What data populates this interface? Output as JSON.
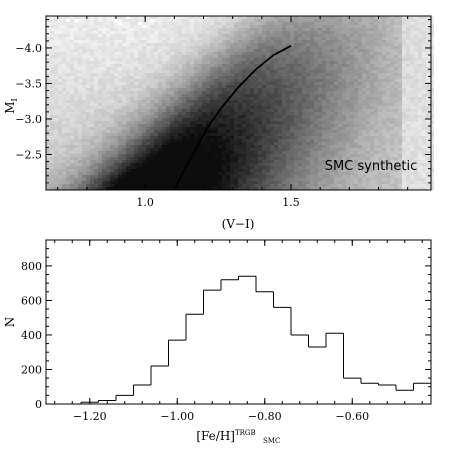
{
  "chart_data": [
    {
      "type": "scatter",
      "title": "",
      "xlabel": "(V−I)",
      "ylabel": "M",
      "ylabel_sub": "I",
      "xlim": [
        0.66,
        1.98
      ],
      "ylim": [
        -2.0,
        -4.45
      ],
      "y_inverted": true,
      "x_ticks": [
        1.0,
        1.5
      ],
      "x_tick_labels": [
        "1.0",
        "1.5"
      ],
      "y_ticks": [
        -2.5,
        -3.0,
        -3.5,
        -4.0
      ],
      "y_tick_labels": [
        "−2.5",
        "−3.0",
        "−3.5",
        "−4.0"
      ],
      "annotation": "SMC synthetic",
      "point_color": "#000000",
      "series": [
        {
          "kind": "curve",
          "x": [
            1.1,
            1.13,
            1.17,
            1.21,
            1.26,
            1.32,
            1.38,
            1.44,
            1.5
          ],
          "y": [
            -2.0,
            -2.25,
            -2.55,
            -2.85,
            -3.15,
            -3.45,
            -3.7,
            -3.9,
            -4.03
          ]
        }
      ]
    },
    {
      "type": "histogram",
      "title": "",
      "xlabel": "[Fe/H]",
      "xlabel_sub": "SMC",
      "xlabel_sup": "TRGB",
      "ylabel": "N",
      "xlim": [
        -1.3,
        -0.42
      ],
      "ylim": [
        0,
        950
      ],
      "x_ticks": [
        -1.2,
        -1.0,
        -0.8,
        -0.6
      ],
      "x_tick_labels": [
        "−1.20",
        "−1.00",
        "−0.80",
        "−0.60"
      ],
      "y_ticks": [
        0,
        200,
        400,
        600,
        800
      ],
      "y_tick_labels": [
        "0",
        "200",
        "400",
        "600",
        "800"
      ],
      "bin_edges": [
        -1.3,
        -1.26,
        -1.22,
        -1.18,
        -1.14,
        -1.1,
        -1.06,
        -1.02,
        -0.98,
        -0.94,
        -0.9,
        -0.86,
        -0.82,
        -0.78,
        -0.74,
        -0.7,
        -0.66,
        -0.62,
        -0.58,
        -0.54,
        -0.5,
        -0.46,
        -0.42
      ],
      "counts": [
        0,
        0,
        10,
        20,
        50,
        110,
        220,
        370,
        520,
        660,
        720,
        740,
        650,
        560,
        400,
        330,
        410,
        150,
        120,
        110,
        80,
        120
      ]
    }
  ]
}
